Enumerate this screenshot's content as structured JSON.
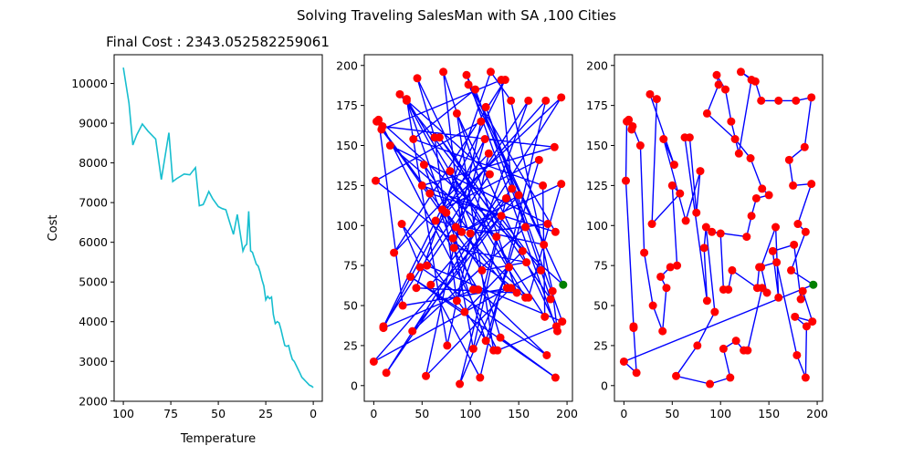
{
  "figure": {
    "suptitle": "Solving Traveling SalesMan with SA ,100 Cities",
    "colors": {
      "cost_line": "#17becf",
      "route": "#0000ff",
      "city": "#ff0000",
      "start_city": "#008000"
    }
  },
  "chart_data": [
    {
      "type": "line",
      "title": "Final Cost : 2343.052582259061",
      "xlabel": "Temperature",
      "ylabel": "Cost",
      "xlim": [
        104.85,
        -4.75
      ],
      "ylim": [
        1995,
        10725
      ],
      "xticks": [
        100,
        75,
        50,
        25,
        0
      ],
      "xtick_labels": [
        "100",
        "75",
        "50",
        "25",
        "0"
      ],
      "yticks": [
        2000,
        3000,
        4000,
        5000,
        6000,
        7000,
        8000,
        9000,
        10000
      ],
      "ytick_labels": [
        "2000",
        "3000",
        "4000",
        "5000",
        "6000",
        "7000",
        "8000",
        "9000",
        "10000"
      ],
      "grid": false,
      "series": [
        {
          "x": [
            100,
            97,
            95,
            93,
            90,
            87,
            83,
            80,
            76,
            74,
            72,
            68,
            65,
            62,
            60,
            58,
            57,
            55,
            53,
            50,
            48,
            46,
            44,
            42,
            41,
            40,
            38,
            37,
            36,
            35,
            34,
            33,
            32,
            31,
            30,
            29,
            28,
            27,
            26,
            25,
            24,
            23,
            22,
            21,
            20,
            19,
            18,
            17,
            16,
            15,
            14,
            13,
            12,
            11,
            10,
            9,
            8,
            7,
            6,
            5,
            4,
            3,
            2,
            1,
            0
          ],
          "y": [
            10400,
            9500,
            8450,
            8700,
            8980,
            8800,
            8600,
            7580,
            8760,
            7530,
            7600,
            7720,
            7700,
            7880,
            6920,
            6950,
            7050,
            7280,
            7100,
            6900,
            6850,
            6820,
            6500,
            6200,
            6450,
            6700,
            6080,
            5780,
            5900,
            5950,
            6780,
            5780,
            5750,
            5600,
            5450,
            5400,
            5250,
            5050,
            4900,
            4550,
            4640,
            4580,
            4620,
            4180,
            3950,
            4000,
            3970,
            3800,
            3600,
            3400,
            3380,
            3400,
            3200,
            3050,
            3000,
            2900,
            2800,
            2700,
            2600,
            2550,
            2500,
            2450,
            2400,
            2380,
            2343
          ]
        }
      ]
    },
    {
      "type": "line",
      "subtype": "route-initial",
      "xlim": [
        -9.8,
        205.6
      ],
      "ylim": [
        -9.8,
        206.7
      ],
      "xticks": [
        0,
        50,
        100,
        150,
        200
      ],
      "xtick_labels": [
        "0",
        "50",
        "100",
        "150",
        "200"
      ],
      "yticks": [
        0,
        25,
        50,
        75,
        100,
        125,
        150,
        175,
        200
      ],
      "ytick_labels": [
        "0",
        "25",
        "50",
        "75",
        "100",
        "125",
        "150",
        "175",
        "200"
      ],
      "grid": false,
      "start_city": [
        196,
        63
      ],
      "route": [
        [
          196,
          63
        ],
        [
          5,
          166
        ],
        [
          30,
          50
        ],
        [
          142,
          61
        ],
        [
          54,
          6
        ],
        [
          111,
          165
        ],
        [
          2,
          128
        ],
        [
          157,
          55
        ],
        [
          34,
          179
        ],
        [
          76,
          25
        ],
        [
          119,
          145
        ],
        [
          21,
          83
        ],
        [
          136,
          191
        ],
        [
          10,
          37
        ],
        [
          160,
          178
        ],
        [
          86,
          53
        ],
        [
          63,
          155
        ],
        [
          45,
          192
        ],
        [
          140,
          74
        ],
        [
          89,
          1
        ],
        [
          127,
          93
        ],
        [
          17,
          150
        ],
        [
          180,
          101
        ],
        [
          100,
          95
        ],
        [
          52,
          138
        ],
        [
          116,
          28
        ],
        [
          171,
          141
        ],
        [
          71,
          110
        ],
        [
          194,
          180
        ],
        [
          13,
          8
        ],
        [
          137,
          117
        ],
        [
          103,
          23
        ],
        [
          82,
          92
        ],
        [
          150,
          119
        ],
        [
          0,
          15
        ],
        [
          173,
          72
        ],
        [
          68,
          155
        ],
        [
          183,
          54
        ],
        [
          116,
          174
        ],
        [
          195,
          40
        ],
        [
          55,
          75
        ],
        [
          120,
          132
        ],
        [
          27,
          182
        ],
        [
          154,
          84
        ],
        [
          94,
          46
        ],
        [
          38,
          68
        ],
        [
          188,
          5
        ],
        [
          131,
          30
        ],
        [
          79,
          134
        ],
        [
          177,
          43
        ],
        [
          175,
          125
        ],
        [
          41,
          154
        ],
        [
          105,
          185
        ],
        [
          157,
          99
        ],
        [
          40,
          34
        ],
        [
          132,
          106
        ],
        [
          50,
          125
        ],
        [
          187,
          149
        ],
        [
          9,
          162
        ],
        [
          128,
          22
        ],
        [
          189,
          37
        ],
        [
          86,
          170
        ],
        [
          124,
          22
        ],
        [
          29,
          101
        ],
        [
          48,
          74
        ],
        [
          179,
          19
        ],
        [
          108,
          60
        ],
        [
          64,
          103
        ],
        [
          176,
          88
        ],
        [
          98,
          188
        ],
        [
          188,
          96
        ],
        [
          58,
          120
        ],
        [
          3,
          165
        ],
        [
          112,
          72
        ],
        [
          158,
          77
        ],
        [
          83,
          86
        ],
        [
          115,
          154
        ],
        [
          10,
          36
        ],
        [
          103,
          60
        ],
        [
          34,
          178
        ],
        [
          138,
          61
        ],
        [
          75,
          108
        ],
        [
          178,
          178
        ],
        [
          110,
          5
        ],
        [
          59,
          63
        ],
        [
          143,
          123
        ],
        [
          132,
          191
        ],
        [
          8,
          160
        ],
        [
          85,
          99
        ],
        [
          160,
          55
        ],
        [
          194,
          126
        ],
        [
          91,
          96
        ],
        [
          72,
          196
        ],
        [
          148,
          58
        ],
        [
          44,
          61
        ],
        [
          121,
          196
        ],
        [
          142,
          178
        ],
        [
          185,
          59
        ],
        [
          190,
          34
        ],
        [
          96,
          194
        ],
        [
          196,
          63
        ]
      ]
    },
    {
      "type": "line",
      "subtype": "route-final",
      "xlim": [
        -9.8,
        205.6
      ],
      "ylim": [
        -9.8,
        206.7
      ],
      "xticks": [
        0,
        50,
        100,
        150,
        200
      ],
      "xtick_labels": [
        "0",
        "50",
        "100",
        "150",
        "200"
      ],
      "yticks": [
        0,
        25,
        50,
        75,
        100,
        125,
        150,
        175,
        200
      ],
      "ytick_labels": [
        "0",
        "25",
        "50",
        "75",
        "100",
        "125",
        "150",
        "175",
        "200"
      ],
      "grid": false,
      "start_city": [
        196,
        63
      ],
      "route": [
        [
          196,
          63
        ],
        [
          0,
          15
        ],
        [
          13,
          8
        ],
        [
          10,
          36
        ],
        [
          10,
          37
        ],
        [
          2,
          128
        ],
        [
          3,
          165
        ],
        [
          5,
          166
        ],
        [
          8,
          160
        ],
        [
          9,
          162
        ],
        [
          17,
          150
        ],
        [
          21,
          83
        ],
        [
          30,
          50
        ],
        [
          40,
          34
        ],
        [
          44,
          61
        ],
        [
          38,
          68
        ],
        [
          48,
          74
        ],
        [
          55,
          75
        ],
        [
          50,
          125
        ],
        [
          58,
          120
        ],
        [
          29,
          101
        ],
        [
          34,
          179
        ],
        [
          27,
          182
        ],
        [
          52,
          138
        ],
        [
          41,
          154
        ],
        [
          64,
          103
        ],
        [
          79,
          134
        ],
        [
          75,
          108
        ],
        [
          68,
          155
        ],
        [
          63,
          155
        ],
        [
          86,
          53
        ],
        [
          83,
          86
        ],
        [
          85,
          99
        ],
        [
          94,
          46
        ],
        [
          76,
          25
        ],
        [
          54,
          6
        ],
        [
          89,
          1
        ],
        [
          110,
          5
        ],
        [
          103,
          23
        ],
        [
          116,
          28
        ],
        [
          124,
          22
        ],
        [
          128,
          22
        ],
        [
          143,
          61
        ],
        [
          148,
          58
        ],
        [
          142,
          74
        ],
        [
          157,
          99
        ],
        [
          160,
          55
        ],
        [
          154,
          84
        ],
        [
          176,
          88
        ],
        [
          183,
          54
        ],
        [
          185,
          59
        ],
        [
          195,
          40
        ],
        [
          177,
          43
        ],
        [
          189,
          37
        ],
        [
          188,
          5
        ],
        [
          179,
          19
        ],
        [
          158,
          77
        ],
        [
          140,
          74
        ],
        [
          138,
          61
        ],
        [
          112,
          72
        ],
        [
          108,
          60
        ],
        [
          103,
          60
        ],
        [
          100,
          95
        ],
        [
          91,
          96
        ],
        [
          127,
          93
        ],
        [
          132,
          106
        ],
        [
          137,
          117
        ],
        [
          150,
          119
        ],
        [
          143,
          123
        ],
        [
          131,
          142
        ],
        [
          115,
          154
        ],
        [
          86,
          170
        ],
        [
          98,
          188
        ],
        [
          96,
          194
        ],
        [
          105,
          185
        ],
        [
          111,
          165
        ],
        [
          119,
          145
        ],
        [
          132,
          191
        ],
        [
          121,
          196
        ],
        [
          136,
          190
        ],
        [
          142,
          178
        ],
        [
          160,
          178
        ],
        [
          178,
          178
        ],
        [
          194,
          180
        ],
        [
          187,
          149
        ],
        [
          171,
          141
        ],
        [
          175,
          125
        ],
        [
          194,
          126
        ],
        [
          180,
          101
        ],
        [
          188,
          96
        ],
        [
          173,
          72
        ],
        [
          196,
          63
        ]
      ]
    }
  ]
}
